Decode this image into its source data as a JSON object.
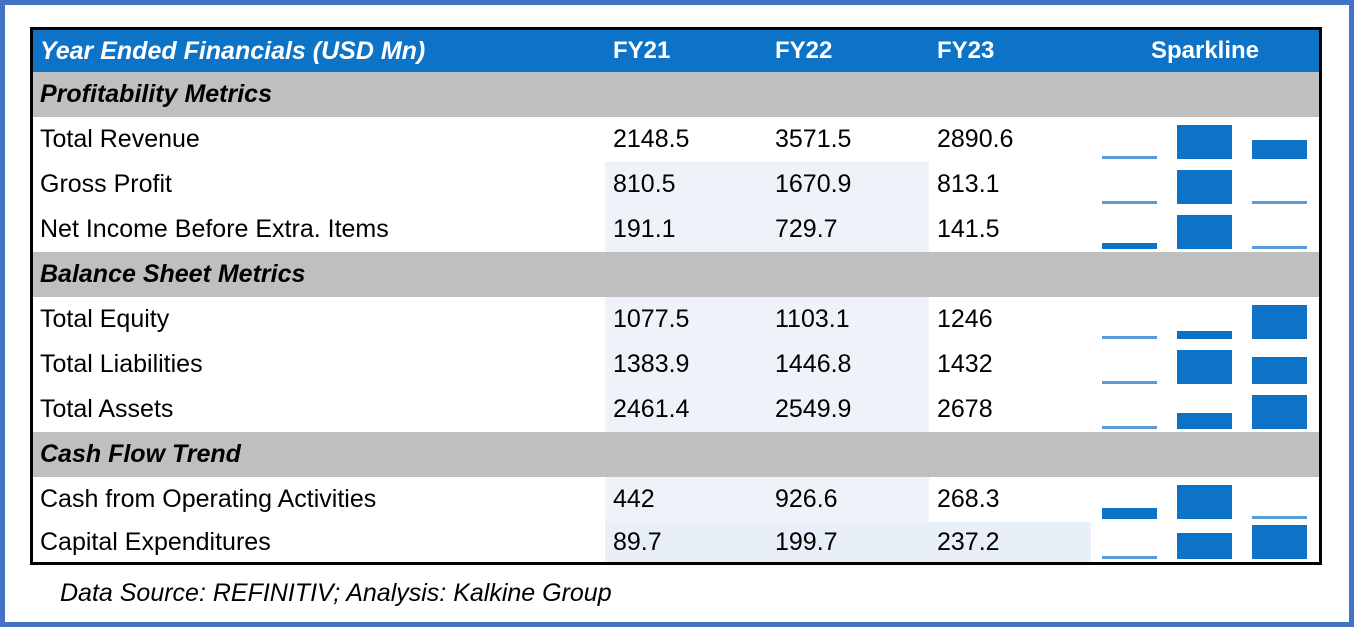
{
  "chart_data": {
    "type": "table",
    "title": "Year Ended Financials (USD Mn)",
    "columns": [
      "FY21",
      "FY22",
      "FY23"
    ],
    "sparkline_column_header": "Sparkline",
    "sparkline": {
      "type": "bar",
      "scaling": "per-row min-max",
      "series_per_row": [
        "FY21",
        "FY22",
        "FY23"
      ]
    },
    "sections": [
      {
        "title": "Profitability Metrics",
        "rows": [
          {
            "label": "Total Revenue",
            "values": [
              2148.5,
              3571.5,
              2890.6
            ],
            "shade": "none"
          },
          {
            "label": "Gross Profit",
            "values": [
              810.5,
              1670.9,
              813.1
            ],
            "shade": "fy21-fy22"
          },
          {
            "label": "Net Income Before Extra. Items",
            "values": [
              191.1,
              729.7,
              141.5
            ],
            "shade": "fy21-fy22"
          }
        ]
      },
      {
        "title": "Balance Sheet Metrics",
        "rows": [
          {
            "label": "Total Equity",
            "values": [
              1077.5,
              1103.1,
              1246
            ],
            "shade": "fy21-fy22"
          },
          {
            "label": "Total Liabilities",
            "values": [
              1383.9,
              1446.8,
              1432
            ],
            "shade": "fy21-fy22"
          },
          {
            "label": "Total Assets",
            "values": [
              2461.4,
              2549.9,
              2678
            ],
            "shade": "fy21-fy22"
          }
        ]
      },
      {
        "title": "Cash Flow Trend",
        "rows": [
          {
            "label": "Cash from Operating Activities",
            "values": [
              442,
              926.6,
              268.3
            ],
            "shade": "fy21-fy22"
          },
          {
            "label": "Capital Expenditures",
            "values": [
              89.7,
              199.7,
              237.2
            ],
            "shade": "fy21-fy23"
          }
        ]
      }
    ],
    "footnote": "Data Source: REFINITIV; Analysis: Kalkine Group"
  },
  "colors": {
    "header_bg": "#0d73c6",
    "header_text": "#ffffff",
    "section_bg": "#bfbfbf",
    "sparkline_bar": "#0d73c6",
    "sparkline_bar_light": "#5b9bd5",
    "cell_shade": "#eff3f9",
    "cell_shade_strong": "#e8eff9",
    "outer_border": "#4472c4",
    "table_border": "#000000"
  }
}
